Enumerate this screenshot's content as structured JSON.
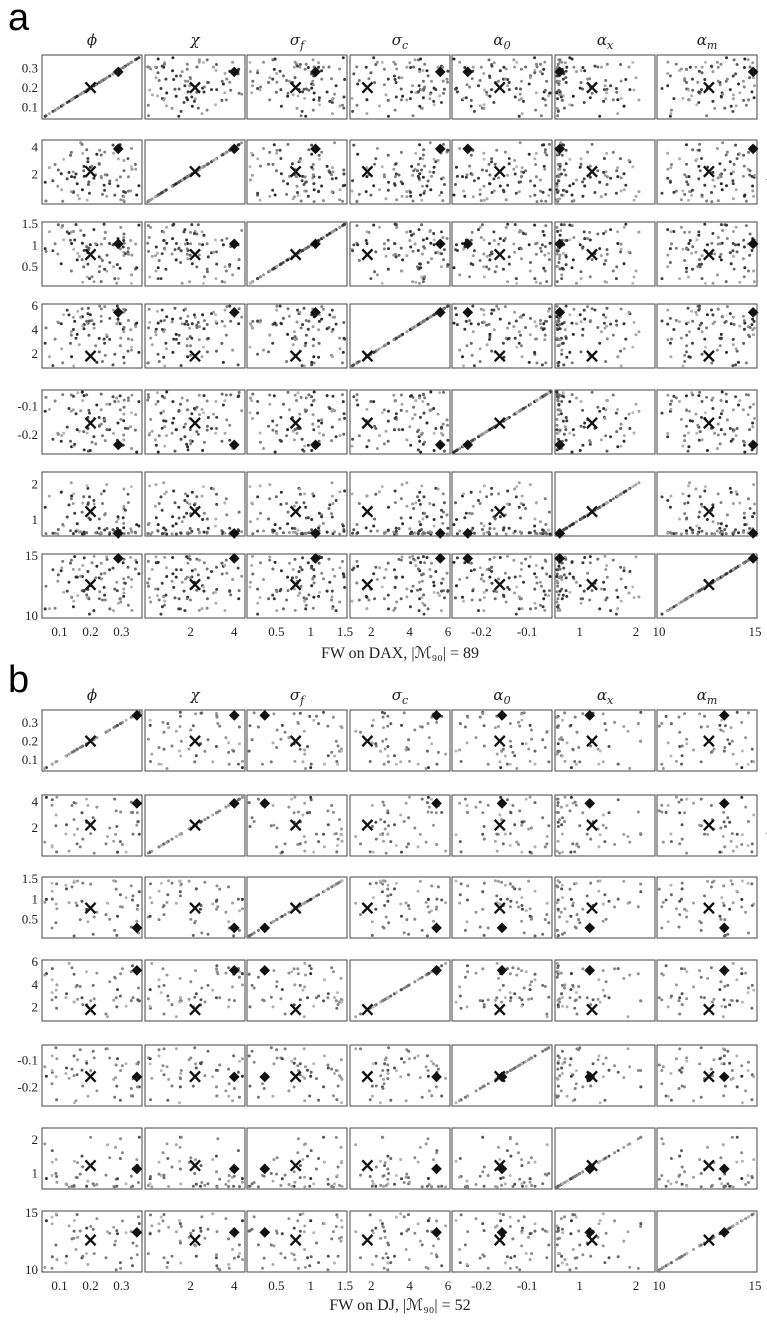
{
  "chart_data": [
    {
      "type": "scatter",
      "panel_label": "a",
      "caption": "FW on DAX, |ℳ₉₀| = 89",
      "n_points": 89,
      "parameters": [
        "ϕ",
        "χ",
        "σ_f",
        "σ_c",
        "α_0",
        "α_x",
        "α_m"
      ],
      "ranges": [
        [
          0.05,
          0.36
        ],
        [
          0,
          4.4
        ],
        [
          0.1,
          1.5
        ],
        [
          1,
          6
        ],
        [
          -0.26,
          -0.05
        ],
        [
          0.6,
          2.3
        ],
        [
          10,
          15
        ]
      ],
      "x_ticks": [
        [
          "0.1",
          "0.2",
          "0.3"
        ],
        [
          "2",
          "4"
        ],
        [
          "0.5",
          "1",
          "1.5"
        ],
        [
          "2",
          "4",
          "6"
        ],
        [
          "-0.2",
          "-0.1"
        ],
        [
          "1",
          "2"
        ],
        [
          "10",
          "15"
        ]
      ],
      "y_ticks": [
        [
          "0.1",
          "0.2",
          "0.3"
        ],
        [
          "2",
          "4"
        ],
        [
          "0.5",
          "1",
          "1.5"
        ],
        [
          "2",
          "4",
          "6"
        ],
        [
          "-0.2",
          "-0.1"
        ],
        [
          "1",
          "2"
        ],
        [
          "10",
          "15"
        ]
      ],
      "x_marker": [
        0.2,
        2.2,
        0.78,
        1.8,
        -0.16,
        1.22,
        12.6
      ],
      "diamond_marker": [
        0.29,
        4.0,
        1.07,
        5.6,
        -0.23,
        0.65,
        14.9
      ],
      "x_marker_label": "×",
      "diamond_marker_label": "◆"
    },
    {
      "type": "scatter",
      "panel_label": "b",
      "caption": "FW on DJ, |ℳ₉₀| = 52",
      "n_points": 52,
      "parameters": [
        "ϕ",
        "χ",
        "σ_f",
        "σ_c",
        "α_0",
        "α_x",
        "α_m"
      ],
      "ranges": [
        [
          0.05,
          0.36
        ],
        [
          0,
          4.4
        ],
        [
          0.1,
          1.5
        ],
        [
          1,
          6
        ],
        [
          -0.26,
          -0.05
        ],
        [
          0.6,
          2.3
        ],
        [
          10,
          15
        ]
      ],
      "x_ticks": [
        [
          "0.1",
          "0.2",
          "0.3"
        ],
        [
          "2",
          "4"
        ],
        [
          "0.5",
          "1",
          "1.5"
        ],
        [
          "2",
          "4",
          "6"
        ],
        [
          "-0.2",
          "-0.1"
        ],
        [
          "1",
          "2"
        ],
        [
          "10",
          "15"
        ]
      ],
      "y_ticks": [
        [
          "0.1",
          "0.2",
          "0.3"
        ],
        [
          "2",
          "4"
        ],
        [
          "0.5",
          "1",
          "1.5"
        ],
        [
          "2",
          "4",
          "6"
        ],
        [
          "-0.2",
          "-0.1"
        ],
        [
          "1",
          "2"
        ],
        [
          "10",
          "15"
        ]
      ],
      "x_marker": [
        0.2,
        2.2,
        0.78,
        1.8,
        -0.16,
        1.22,
        12.6
      ],
      "diamond_marker": [
        0.35,
        4.0,
        0.33,
        5.4,
        -0.155,
        1.18,
        13.4
      ],
      "x_marker_label": "×",
      "diamond_marker_label": "◆"
    }
  ]
}
